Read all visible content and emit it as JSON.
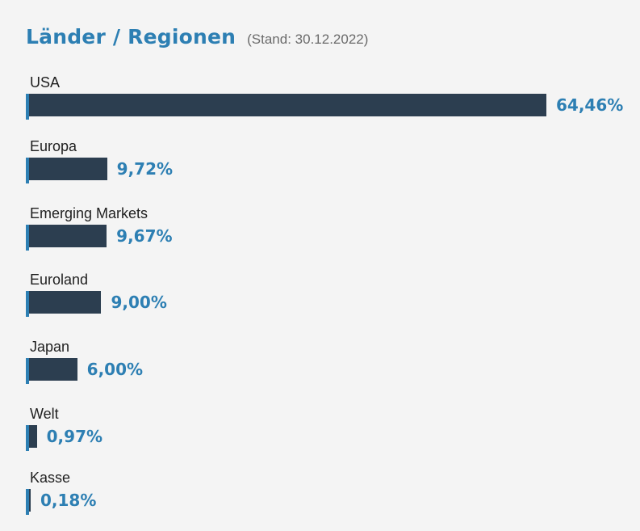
{
  "header": {
    "title": "Länder / Regionen",
    "subtitle": "(Stand: 30.12.2022)"
  },
  "colors": {
    "accent": "#2d7fb3",
    "bar": "#2c3e50",
    "background": "#f4f4f4"
  },
  "chart_data": {
    "type": "bar",
    "orientation": "horizontal",
    "categories": [
      "USA",
      "Europa",
      "Emerging Markets",
      "Euroland",
      "Japan",
      "Welt",
      "Kasse"
    ],
    "values": [
      64.46,
      9.72,
      9.67,
      9.0,
      6.0,
      0.97,
      0.18
    ],
    "value_labels": [
      "64,46%",
      "9,72%",
      "9,67%",
      "9,00%",
      "6,00%",
      "0,97%",
      "0,18%"
    ],
    "title": "Länder / Regionen",
    "subtitle": "(Stand: 30.12.2022)",
    "xlabel": "",
    "ylabel": "",
    "xlim": [
      0,
      64.46
    ],
    "grid": false,
    "legend": "none"
  }
}
